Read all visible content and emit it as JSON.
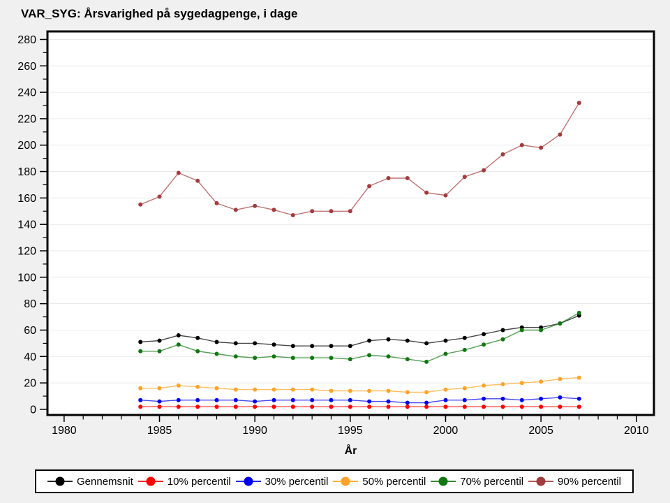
{
  "title": "VAR_SYG: Årsvarighed på sygedagpenge, i dage",
  "chart_data": {
    "type": "line",
    "title": "VAR_SYG: Årsvarighed på sygedagpenge, i dage",
    "xlabel": "År",
    "ylabel": "",
    "x": [
      1984,
      1985,
      1986,
      1987,
      1988,
      1989,
      1990,
      1991,
      1992,
      1993,
      1994,
      1995,
      1996,
      1997,
      1998,
      1999,
      2000,
      2001,
      2002,
      2003,
      2004,
      2005,
      2006,
      2007
    ],
    "series": [
      {
        "name": "Gennemsnit",
        "color": "#000000",
        "values": [
          51,
          52,
          56,
          54,
          51,
          50,
          50,
          49,
          48,
          48,
          48,
          48,
          52,
          53,
          52,
          50,
          52,
          54,
          57,
          60,
          62,
          62,
          65,
          71
        ]
      },
      {
        "name": "10% percentil",
        "color": "#FF0000",
        "values": [
          2,
          2,
          2,
          2,
          2,
          2,
          2,
          2,
          2,
          2,
          2,
          2,
          2,
          2,
          2,
          2,
          2,
          2,
          2,
          2,
          2,
          2,
          2,
          2
        ]
      },
      {
        "name": "30% percentil",
        "color": "#0000EE",
        "values": [
          7,
          6,
          7,
          7,
          7,
          7,
          6,
          7,
          7,
          7,
          7,
          7,
          6,
          6,
          5,
          5,
          7,
          7,
          8,
          8,
          7,
          8,
          9,
          8
        ]
      },
      {
        "name": "50% percentil",
        "color": "#FFA428",
        "values": [
          16,
          16,
          18,
          17,
          16,
          15,
          15,
          15,
          15,
          15,
          14,
          14,
          14,
          14,
          13,
          13,
          15,
          16,
          18,
          19,
          20,
          21,
          23,
          24
        ]
      },
      {
        "name": "70% percentil",
        "color": "#117711",
        "values": [
          44,
          44,
          49,
          44,
          42,
          40,
          39,
          40,
          39,
          39,
          39,
          38,
          41,
          40,
          38,
          36,
          42,
          45,
          49,
          53,
          60,
          60,
          65,
          73
        ]
      },
      {
        "name": "90% percentil",
        "color": "#A33B3C",
        "values": [
          155,
          161,
          179,
          173,
          156,
          151,
          154,
          151,
          147,
          150,
          150,
          150,
          169,
          175,
          175,
          164,
          162,
          176,
          181,
          193,
          200,
          198,
          208,
          232
        ]
      }
    ],
    "xlim": [
      1979.2,
      2010.85
    ],
    "ylim": [
      -3.2,
      285
    ],
    "x_tick_labels": [
      "1980",
      "1985",
      "1990",
      "1995",
      "2000",
      "2005",
      "2010"
    ],
    "y_tick_labels": [
      "0",
      "20",
      "40",
      "60",
      "80",
      "100",
      "120",
      "140",
      "160",
      "180",
      "200",
      "220",
      "240",
      "260",
      "280"
    ],
    "x_minor_tick_step": 1,
    "y_minor_tick_step": 10,
    "grid": "horizontal",
    "grid_color": "#EAEAEA",
    "legend_position": "bottom"
  }
}
